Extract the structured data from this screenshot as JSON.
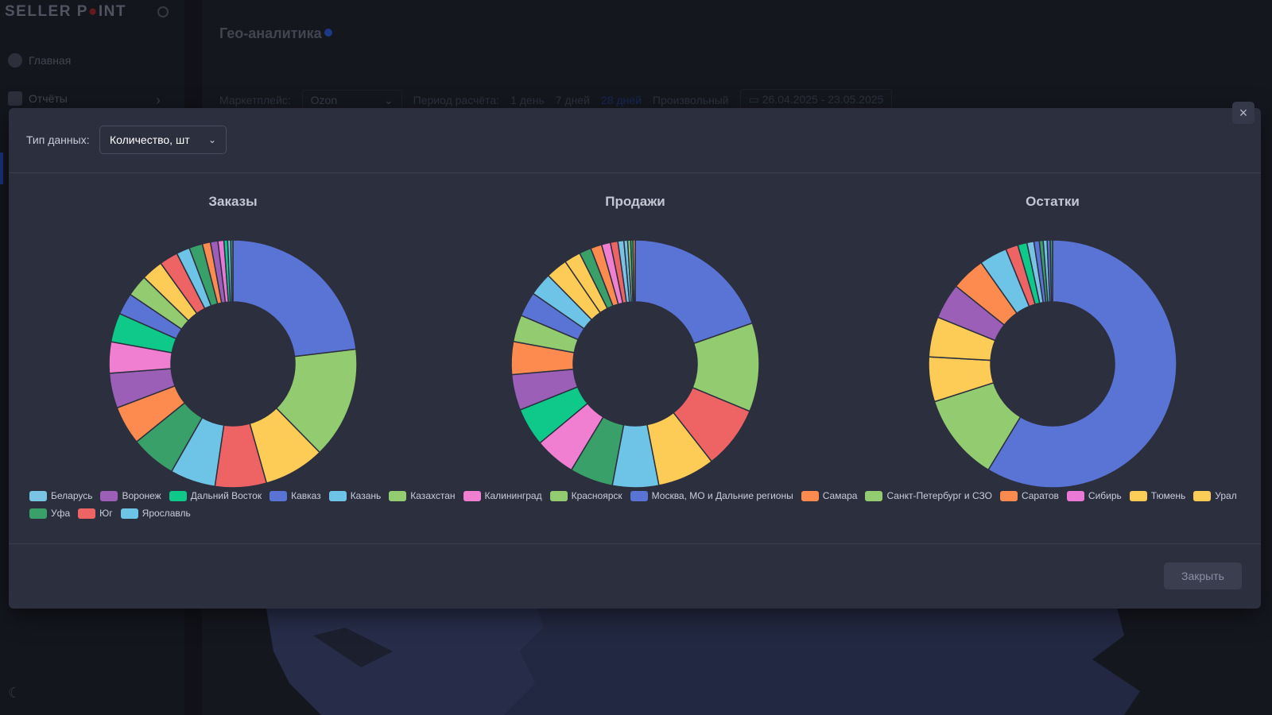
{
  "app": {
    "logo": {
      "text_pre": "SELLER P",
      "text_dot": "●",
      "text_post": "INT"
    },
    "sidebar": {
      "items": [
        {
          "label": "Главная"
        },
        {
          "label": "Отчёты"
        }
      ]
    },
    "page_title": "Гео-аналитика",
    "filters": {
      "marketplace_label": "Маркетплейс:",
      "marketplace_value": "Ozon",
      "period_label": "Период расчёта:",
      "period_options": [
        "1 день",
        "7 дней",
        "28 дней",
        "Произвольный"
      ],
      "period_active": "28 дней",
      "date_range": "26.04.2025 - 23.05.2025"
    }
  },
  "modal": {
    "data_type_label": "Тип данных:",
    "data_type_value": "Количество, шт",
    "close_button": "Закрыть"
  },
  "colors": {
    "Беларусь": "#79c4e4",
    "Воронеж": "#9b5fb8",
    "Дальний Восток": "#0fc98a",
    "Кавказ": "#5a74d6",
    "Казань": "#6ec4e6",
    "Казахстан": "#93cb70",
    "Калининград": "#f07fd2",
    "Красноярск": "#93cb70",
    "Москва, МО и Дальние регионы": "#5a74d6",
    "Самара": "#fd8a4e",
    "Санкт-Петербург и СЗО": "#93cb70",
    "Саратов": "#fd8a4e",
    "Сибирь": "#ea78d6",
    "Тюмень": "#fdcc57",
    "Урал": "#fdcc57",
    "Уфа": "#3aa06a",
    "Юг": "#ee6464",
    "Ярославль": "#6ec4e6"
  },
  "chart_data": [
    {
      "type": "pie",
      "title": "Заказы",
      "slices": [
        {
          "name": "Москва, МО и Дальние регионы",
          "value": 23.8
        },
        {
          "name": "Санкт-Петербург и СЗО",
          "value": 15.0
        },
        {
          "name": "Урал",
          "value": 8.2
        },
        {
          "name": "Юг",
          "value": 6.9
        },
        {
          "name": "Ярославль",
          "value": 6.1
        },
        {
          "name": "Уфа",
          "value": 6.1
        },
        {
          "name": "Саратов",
          "value": 5.2
        },
        {
          "name": "Воронеж",
          "value": 4.7
        },
        {
          "name": "Калининград",
          "value": 4.2
        },
        {
          "name": "Дальний Восток",
          "value": 3.9
        },
        {
          "name": "Кавказ",
          "value": 2.9
        },
        {
          "name": "Казахстан",
          "value": 2.9
        },
        {
          "name": "Тюмень",
          "value": 2.9
        },
        {
          "name": "Юг",
          "value": 2.5
        },
        {
          "name": "Казань",
          "value": 1.8
        },
        {
          "name": "Уфа",
          "value": 1.8
        },
        {
          "name": "Саратов",
          "value": 1.1
        },
        {
          "name": "Воронеж",
          "value": 1.0
        },
        {
          "name": "Сибирь",
          "value": 0.8
        },
        {
          "name": "Дальний Восток",
          "value": 0.5
        },
        {
          "name": "Беларусь",
          "value": 0.4
        },
        {
          "name": "Уфа",
          "value": 0.3
        }
      ]
    },
    {
      "type": "pie",
      "title": "Продажи",
      "slices": [
        {
          "name": "Москва, МО и Дальние регионы",
          "value": 20.2
        },
        {
          "name": "Санкт-Петербург и СЗО",
          "value": 11.9
        },
        {
          "name": "Юг",
          "value": 8.4
        },
        {
          "name": "Урал",
          "value": 7.7
        },
        {
          "name": "Казань",
          "value": 6.2
        },
        {
          "name": "Уфа",
          "value": 5.8
        },
        {
          "name": "Калининград",
          "value": 5.5
        },
        {
          "name": "Дальний Восток",
          "value": 5.1
        },
        {
          "name": "Воронеж",
          "value": 4.8
        },
        {
          "name": "Самара",
          "value": 4.4
        },
        {
          "name": "Казахстан",
          "value": 3.6
        },
        {
          "name": "Кавказ",
          "value": 3.3
        },
        {
          "name": "Ярославль",
          "value": 3.1
        },
        {
          "name": "Тюмень",
          "value": 2.9
        },
        {
          "name": "Тюмень",
          "value": 2.2
        },
        {
          "name": "Уфа",
          "value": 1.6
        },
        {
          "name": "Саратов",
          "value": 1.5
        },
        {
          "name": "Калининград",
          "value": 1.2
        },
        {
          "name": "Юг",
          "value": 1.0
        },
        {
          "name": "Беларусь",
          "value": 0.8
        },
        {
          "name": "Казань",
          "value": 0.5
        },
        {
          "name": "Санкт-Петербург и СЗО",
          "value": 0.4
        },
        {
          "name": "Дальний Восток",
          "value": 0.3
        },
        {
          "name": "Самара",
          "value": 0.3
        }
      ]
    },
    {
      "type": "pie",
      "title": "Остатки",
      "slices": [
        {
          "name": "Москва, МО и Дальние регионы",
          "value": 58.2
        },
        {
          "name": "Санкт-Петербург и СЗО",
          "value": 11.3
        },
        {
          "name": "Тюмень",
          "value": 5.8
        },
        {
          "name": "Урал",
          "value": 5.2
        },
        {
          "name": "Воронеж",
          "value": 4.6
        },
        {
          "name": "Саратов",
          "value": 4.4
        },
        {
          "name": "Казань",
          "value": 3.6
        },
        {
          "name": "Юг",
          "value": 1.6
        },
        {
          "name": "Дальний Восток",
          "value": 1.2
        },
        {
          "name": "Беларусь",
          "value": 0.9
        },
        {
          "name": "Кавказ",
          "value": 0.7
        },
        {
          "name": "Уфа",
          "value": 0.5
        },
        {
          "name": "Казань",
          "value": 0.5
        },
        {
          "name": "Кавказ",
          "value": 0.4
        },
        {
          "name": "Уфа",
          "value": 0.3
        }
      ]
    }
  ],
  "legend": [
    "Беларусь",
    "Воронеж",
    "Дальний Восток",
    "Кавказ",
    "Казань",
    "Казахстан",
    "Калининград",
    "Красноярск",
    "Москва, МО и Дальние регионы",
    "Самара",
    "Санкт-Петербург и СЗО",
    "Саратов",
    "Сибирь",
    "Тюмень",
    "Урал",
    "Уфа",
    "Юг",
    "Ярославль"
  ]
}
